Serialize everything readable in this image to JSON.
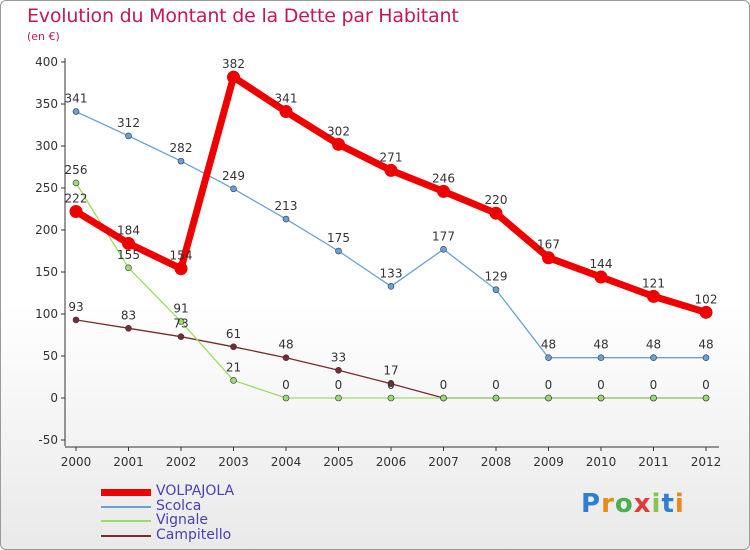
{
  "title": "Evolution du Montant de la Dette par Habitant",
  "subtitle": "(en €)",
  "logo": {
    "text": "Proxiti",
    "colors": [
      "#2e7fd1",
      "#e8891a",
      "#4caf50",
      "#e53935",
      "#8bc34a",
      "#2e7fd1",
      "#e8891a"
    ]
  },
  "chart_data": {
    "type": "line",
    "x": [
      "2000",
      "2001",
      "2002",
      "2003",
      "2004",
      "2005",
      "2006",
      "2007",
      "2008",
      "2009",
      "2010",
      "2011",
      "2012"
    ],
    "ylim": [
      -50,
      400
    ],
    "yticks": [
      "-50",
      "0",
      "50",
      "100",
      "150",
      "200",
      "250",
      "300",
      "350",
      "400"
    ],
    "grid": false,
    "legend_position": "bottom-left",
    "series": [
      {
        "name": "VOLPAJOLA",
        "color": "#ee0000",
        "values": [
          222,
          184,
          154,
          382,
          341,
          302,
          271,
          246,
          220,
          167,
          144,
          121,
          102
        ],
        "labels": [
          "222",
          "184",
          "154",
          "382",
          "341",
          "302",
          "271",
          "246",
          "220",
          "167",
          "144",
          "121",
          "102"
        ]
      },
      {
        "name": "Scolca",
        "color": "#6aa2cf",
        "values": [
          341,
          312,
          282,
          249,
          213,
          175,
          133,
          177,
          129,
          48,
          48,
          48,
          48
        ],
        "labels": [
          "341",
          "312",
          "282",
          "249",
          "213",
          "175",
          "133",
          "177",
          "129",
          "48",
          "48",
          "48",
          "48"
        ]
      },
      {
        "name": "Vignale",
        "color": "#99dd66",
        "values": [
          256,
          155,
          91,
          21,
          0,
          0,
          0,
          0,
          0,
          0,
          0,
          0,
          0
        ],
        "labels": [
          "256",
          "155",
          "91",
          "21",
          "0",
          "0",
          "0",
          "",
          "",
          "",
          "",
          "",
          ""
        ]
      },
      {
        "name": "Campitello",
        "color": "#7a2c2c",
        "values": [
          93,
          83,
          73,
          61,
          48,
          33,
          17,
          0,
          0,
          0,
          0,
          0,
          0
        ],
        "labels": [
          "93",
          "83",
          "73",
          "61",
          "48",
          "33",
          "17",
          "0",
          "0",
          "0",
          "0",
          "0",
          "0"
        ]
      }
    ]
  }
}
